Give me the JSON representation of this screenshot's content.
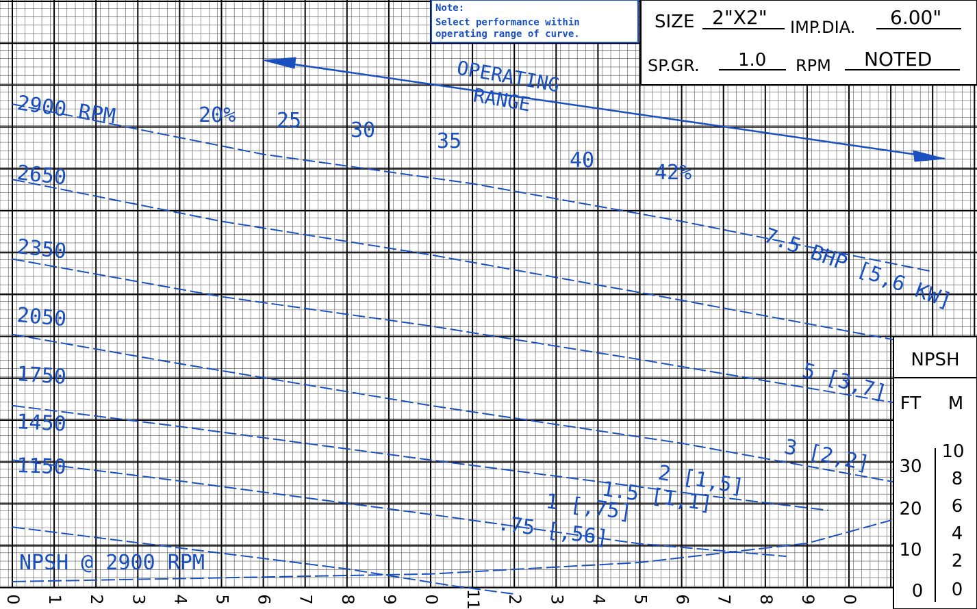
{
  "note": {
    "heading": "Note:",
    "line1": "Select performance within",
    "line2": "operating range of curve."
  },
  "spec_box": {
    "size_label": "SIZE",
    "size_value": "2\"X2\"",
    "imp_label": "IMP.DIA.",
    "imp_value": "6.00\"",
    "sg_label": "SP.GR.",
    "sg_value": "1.0",
    "rpm_label": "RPM",
    "rpm_value": "NOTED"
  },
  "npsh_box": {
    "title": "NPSH",
    "ft_label": "FT",
    "m_label": "M",
    "ft_ticks": [
      "30",
      "20",
      "10",
      "0"
    ],
    "m_ticks": [
      "10",
      "8",
      "6",
      "4",
      "2",
      "0"
    ]
  },
  "x_tick_labels": [
    "0",
    "1",
    "2",
    "3",
    "4",
    "5",
    "6",
    "7",
    "8",
    "9",
    "0",
    "11",
    "2",
    "3",
    "4",
    "5",
    "6",
    "7",
    "8",
    "9",
    "0"
  ],
  "annotations": {
    "operating_range_1": "OPERATING",
    "operating_range_2": "RANGE",
    "npsh_curve": "NPSH @ 2900 RPM"
  },
  "colors": {
    "curve": "#1a4fc0",
    "grid_major": "#000000",
    "grid_minor": "#555555"
  },
  "chart_data": {
    "type": "line",
    "title": "",
    "xlabel": "",
    "ylabel": "",
    "grid": true,
    "speed_curves": [
      {
        "name": "2900 RPM",
        "x": [
          0,
          6,
          11,
          16,
          22
        ],
        "y": [
          1.6,
          0.4,
          -0.3,
          -1.2,
          -2.4
        ]
      },
      {
        "name": "2650",
        "x": [
          0,
          5,
          10,
          15,
          22
        ],
        "y": [
          -0.2,
          -1.2,
          -2.0,
          -2.9,
          -4.2
        ]
      },
      {
        "name": "2350",
        "x": [
          0,
          5,
          10,
          15,
          21.5
        ],
        "y": [
          -2.1,
          -3.0,
          -3.7,
          -4.5,
          -5.6
        ]
      },
      {
        "name": "2050",
        "x": [
          0,
          4,
          10,
          16,
          21.5
        ],
        "y": [
          -3.9,
          -4.6,
          -5.6,
          -6.5,
          -7.5
        ]
      },
      {
        "name": "1750",
        "x": [
          0,
          4,
          10,
          17,
          19.5
        ],
        "y": [
          -5.6,
          -6.1,
          -6.9,
          -7.8,
          -8.1
        ]
      },
      {
        "name": "1450",
        "x": [
          0,
          4,
          10,
          15,
          18.5
        ],
        "y": [
          -6.9,
          -7.4,
          -8.2,
          -8.9,
          -9.2
        ]
      },
      {
        "name": "1150",
        "x": [
          0,
          3.2,
          8,
          10.5,
          12
        ],
        "y": [
          -8.5,
          -8.9,
          -9.5,
          -9.9,
          -10.1
        ]
      }
    ],
    "efficiency_labels": [
      "20%",
      "25",
      "30",
      "35",
      "40",
      "42%"
    ],
    "bhp_labels": [
      "7.5 BHP [5,6 KW]",
      "5 [3,7]",
      "3 [2,2]",
      "2 [1,5]",
      "1.5 [1,1]",
      "1 [,75]",
      ".75 [,56]"
    ],
    "npsh_curve": {
      "name": "NPSH @ 2900 RPM",
      "x": [
        0,
        5,
        10,
        15,
        19,
        21
      ],
      "y_ft": [
        0,
        1,
        2,
        5,
        10,
        16
      ]
    }
  }
}
